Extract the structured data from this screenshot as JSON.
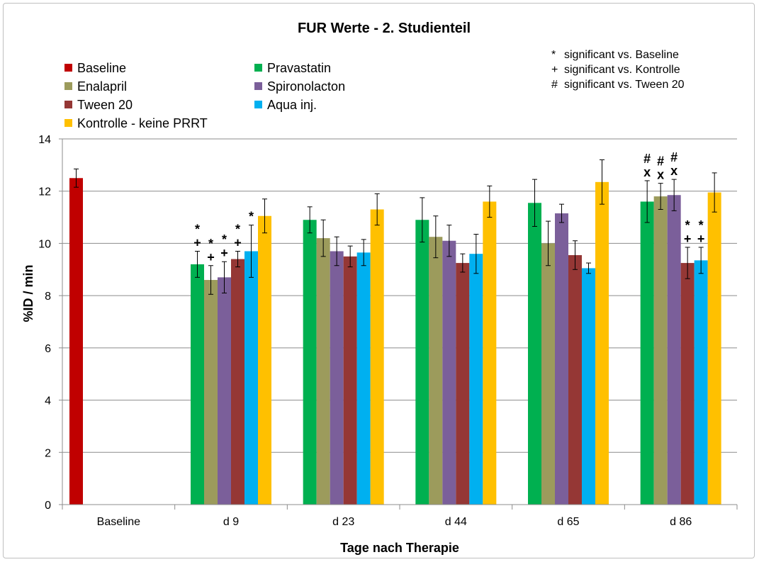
{
  "chart_data": {
    "type": "bar",
    "title": "FUR Werte - 2. Studienteil",
    "xlabel": "Tage nach Therapie",
    "ylabel": "%ID / min",
    "ylim": [
      0,
      14
    ],
    "yticks": [
      0,
      2,
      4,
      6,
      8,
      10,
      12,
      14
    ],
    "grid": true,
    "legend_position": "top-left",
    "categories": [
      "Baseline",
      "d 9",
      "d 23",
      "d 44",
      "d 65",
      "d 86"
    ],
    "series": [
      {
        "name": "Baseline",
        "color": "#c00000",
        "values": [
          12.5,
          null,
          null,
          null,
          null,
          null
        ],
        "errors": [
          0.35,
          null,
          null,
          null,
          null,
          null
        ]
      },
      {
        "name": "Pravastatin",
        "color": "#00b050",
        "values": [
          null,
          9.2,
          10.9,
          10.9,
          11.55,
          11.6
        ],
        "errors": [
          null,
          0.5,
          0.5,
          0.85,
          0.9,
          0.8
        ]
      },
      {
        "name": "Enalapril",
        "color": "#9c9b5c",
        "values": [
          null,
          8.6,
          10.2,
          10.25,
          10.0,
          11.8
        ],
        "errors": [
          null,
          0.55,
          0.7,
          0.8,
          0.85,
          0.5
        ]
      },
      {
        "name": "Spironolacton",
        "color": "#7b5f9a",
        "values": [
          null,
          8.7,
          9.7,
          10.1,
          11.15,
          11.85
        ],
        "errors": [
          null,
          0.6,
          0.55,
          0.6,
          0.35,
          0.6
        ]
      },
      {
        "name": "Tween 20",
        "color": "#953735",
        "values": [
          null,
          9.4,
          9.5,
          9.25,
          9.55,
          9.25
        ],
        "errors": [
          null,
          0.3,
          0.4,
          0.35,
          0.55,
          0.6
        ]
      },
      {
        "name": "Aqua inj.",
        "color": "#00b0f0",
        "values": [
          null,
          9.7,
          9.65,
          9.6,
          9.05,
          9.35
        ],
        "errors": [
          null,
          1.0,
          0.5,
          0.75,
          0.2,
          0.5
        ]
      },
      {
        "name": "Kontrolle - keine PRRT",
        "color": "#ffc000",
        "values": [
          null,
          11.05,
          11.3,
          11.6,
          12.35,
          11.95
        ],
        "errors": [
          null,
          0.65,
          0.6,
          0.6,
          0.85,
          0.75
        ]
      }
    ],
    "annotations": {
      "legend_notes": [
        {
          "symbol": "*",
          "text": "significant vs. Baseline"
        },
        {
          "symbol": "+",
          "text": "significant vs. Kontrolle"
        },
        {
          "symbol": "#",
          "text": "significant vs. Tween 20"
        }
      ],
      "markers": [
        {
          "category": 1,
          "series": 1,
          "lines": [
            "*",
            "+"
          ]
        },
        {
          "category": 1,
          "series": 2,
          "lines": [
            "*",
            "+"
          ]
        },
        {
          "category": 1,
          "series": 3,
          "lines": [
            "*",
            "+"
          ]
        },
        {
          "category": 1,
          "series": 4,
          "lines": [
            "*",
            "+"
          ]
        },
        {
          "category": 1,
          "series": 5,
          "lines": [
            "*"
          ]
        },
        {
          "category": 5,
          "series": 1,
          "lines": [
            "#",
            "x"
          ]
        },
        {
          "category": 5,
          "series": 2,
          "lines": [
            "#",
            "x"
          ]
        },
        {
          "category": 5,
          "series": 3,
          "lines": [
            "#",
            "x"
          ]
        },
        {
          "category": 5,
          "series": 4,
          "lines": [
            "*",
            "+"
          ]
        },
        {
          "category": 5,
          "series": 5,
          "lines": [
            "*",
            "+"
          ]
        }
      ]
    }
  }
}
